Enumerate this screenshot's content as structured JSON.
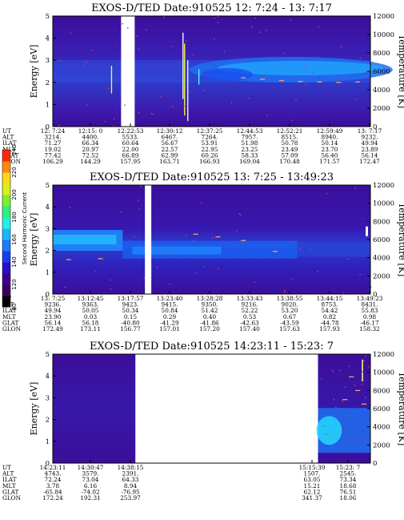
{
  "instrument": "EXOS-D/TED",
  "energy_label": "Energy [eV]",
  "temperature_label": "Temperature [K]",
  "row_labels": [
    "UT",
    "ALT",
    "ILAT",
    "MLT",
    "GLAT",
    "GLON"
  ],
  "colorbar": {
    "label": "Second Harmonic Current",
    "ticks": [
      "80",
      "120",
      "140",
      "160",
      "180",
      "200",
      "220",
      "240"
    ],
    "colors": [
      "#000000",
      "#3a0058",
      "#3f0090",
      "#2a0fc8",
      "#1a3cf0",
      "#1a7bff",
      "#19b7ff",
      "#1ff0e4",
      "#2df07e",
      "#7af02a",
      "#d8f01c",
      "#ffd818",
      "#ff8a10",
      "#ff2a0a"
    ]
  },
  "chart_data": [
    {
      "type": "heatmap",
      "title": "Date:910525  12: 7:24 - 13: 7:17",
      "ylabel": "Energy [eV]",
      "ylabel_right": "Temperature [K]",
      "ylim": [
        0,
        5
      ],
      "ylim_right": [
        0,
        12000
      ],
      "yticks": [
        "0",
        "1",
        "2",
        "3",
        "4",
        "5"
      ],
      "yticks_right": [
        "0",
        "2000",
        "4000",
        "6000",
        "8000",
        "10000",
        "12000"
      ],
      "columns": [
        [
          "12: 7:24",
          "3214.",
          "71.27",
          "19.02",
          "77.42",
          "106.29"
        ],
        [
          "12:15: 0",
          "4400.",
          "66.34",
          "20.97",
          "72.52",
          "144.29"
        ],
        [
          "12:22:53",
          "5533.",
          "60.64",
          "22.00",
          "66.89",
          "157.95"
        ],
        [
          "12:30:12",
          "6467.",
          "56.67",
          "22.57",
          "62.99",
          "163.71"
        ],
        [
          "12:37:25",
          "7264.",
          "53.91",
          "22.95",
          "60.26",
          "166.93"
        ],
        [
          "12:44:53",
          "7957.",
          "51.98",
          "23.25",
          "58.33",
          "169.04"
        ],
        [
          "12:52:21",
          "8515.",
          "50.78",
          "23.49",
          "57.09",
          "170.48"
        ],
        [
          "12:59:49",
          "8940.",
          "50.14",
          "23.70",
          "56.40",
          "171.57"
        ],
        [
          "13: 7:17",
          "9232.",
          "49.94",
          "23.89",
          "56.14",
          "172.47"
        ]
      ],
      "temperature_samples_k": [
        [
          0.6,
          5300
        ],
        [
          0.66,
          5150
        ],
        [
          0.72,
          5000
        ],
        [
          0.78,
          4900
        ],
        [
          0.84,
          4850
        ],
        [
          0.9,
          4800
        ],
        [
          0.96,
          4850
        ]
      ]
    },
    {
      "type": "heatmap",
      "title": "Date:910525  13: 7:25 - 13:49:23",
      "ylabel": "Energy [eV]",
      "ylabel_right": "Temperature [K]",
      "ylim": [
        0,
        5
      ],
      "ylim_right": [
        0,
        12000
      ],
      "yticks": [
        "0",
        "1",
        "2",
        "3",
        "4",
        "5"
      ],
      "yticks_right": [
        "0",
        "2000",
        "4000",
        "6000",
        "8000",
        "10000",
        "12000"
      ],
      "columns": [
        [
          "13: 7:25",
          "9236.",
          "49.94",
          "23.90",
          "56.14",
          "172.49"
        ],
        [
          "13:12:45",
          "9363.",
          "50.05",
          "0.03",
          "56.18",
          "173.11"
        ],
        [
          "13:17:57",
          "9423.",
          "50.34",
          "0.15",
          "-40.80",
          "156.77"
        ],
        [
          "13:23:40",
          "9415.",
          "50.84",
          "0.29",
          "-41.29",
          "157.01"
        ],
        [
          "13:28:28",
          "9350.",
          "51.42",
          "0.40",
          "-41.86",
          "157.20"
        ],
        [
          "13:33:43",
          "9216.",
          "52.22",
          "0.53",
          "-42.63",
          "157.40"
        ],
        [
          "13:38:55",
          "9020.",
          "53.20",
          "0.67",
          "-43.59",
          "157.63"
        ],
        [
          "13:44:15",
          "8753.",
          "54.42",
          "0.82",
          "-44.78",
          "157.93"
        ],
        [
          "13:49:23",
          "8431.",
          "55.83",
          "0.98",
          "-46.17",
          "158.32"
        ]
      ],
      "temperature_samples_k": [
        [
          0.05,
          3800
        ],
        [
          0.15,
          3900
        ],
        [
          0.45,
          6600
        ],
        [
          0.52,
          6300
        ],
        [
          0.6,
          5900
        ],
        [
          0.7,
          4700
        ]
      ]
    },
    {
      "type": "heatmap",
      "title": "Date:910525  14:23:11 - 15:23: 7",
      "ylabel": "Energy [eV]",
      "ylabel_right": "Temperature [K]",
      "ylim": [
        0,
        5
      ],
      "ylim_right": [
        0,
        12000
      ],
      "yticks": [
        "0",
        "1",
        "2",
        "3",
        "4",
        "5"
      ],
      "yticks_right": [
        "0",
        "2000",
        "4000",
        "6000",
        "8000",
        "10000",
        "12000"
      ],
      "columns": [
        [
          "14:23:11",
          "4743.",
          "72.24",
          "3.78",
          "-65.84",
          "172.24"
        ],
        [
          "14:30:47",
          "3579.",
          "73.04",
          "6.16",
          "-74.02",
          "192.31"
        ],
        [
          "14:38:15",
          "2391.",
          "64.33",
          "8.94",
          "-76.95",
          "253.97"
        ],
        [
          "15:15:39",
          "1507.",
          "63.05",
          "15.21",
          "62.12",
          "341.37"
        ],
        [
          "15:23: 7",
          "2545.",
          "73.34",
          "18.68",
          "76.51",
          "18.06"
        ]
      ],
      "temperature_samples_k": [
        [
          0.92,
          7000
        ],
        [
          0.94,
          9500
        ],
        [
          0.96,
          8000
        ],
        [
          0.98,
          6500
        ]
      ]
    }
  ]
}
